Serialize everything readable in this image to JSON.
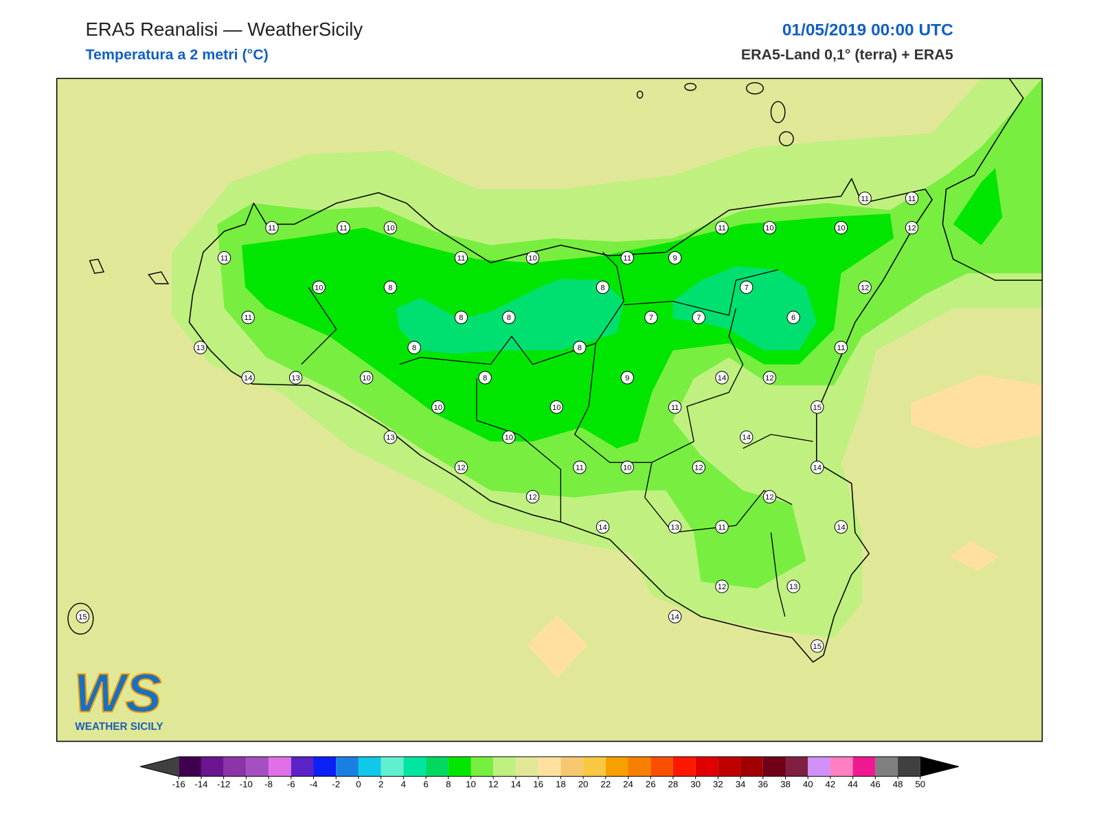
{
  "header": {
    "title": "ERA5 Reanalisi — WeatherSicily",
    "subtitle": "Temperatura a 2 metri (°C)",
    "datetime": "01/05/2019 00:00 UTC",
    "source": "ERA5-Land 0,1° (terra) + ERA5"
  },
  "map": {
    "station_values": [
      11,
      11,
      10,
      11,
      11,
      10,
      11,
      9,
      11,
      10,
      10,
      11,
      11,
      12,
      10,
      8,
      8,
      7,
      12,
      11,
      8,
      8,
      7,
      7,
      6,
      13,
      8,
      8,
      11,
      14,
      13,
      10,
      8,
      9,
      14,
      12,
      10,
      10,
      11,
      15,
      13,
      10,
      14,
      12,
      11,
      10,
      12,
      14,
      12,
      12,
      14,
      13,
      11,
      14,
      12,
      13,
      15,
      14,
      15
    ]
  },
  "logo": {
    "mark": "WS",
    "name": "WEATHER SICILY"
  },
  "colorbar": {
    "ticks": [
      -16,
      -14,
      -12,
      -10,
      -8,
      -6,
      -4,
      -2,
      0,
      2,
      4,
      6,
      8,
      10,
      12,
      14,
      16,
      18,
      20,
      22,
      24,
      26,
      28,
      30,
      32,
      34,
      36,
      38,
      40,
      42,
      44,
      46,
      48,
      50
    ],
    "colors": [
      "#40004f",
      "#6b1590",
      "#8b35a8",
      "#a550c0",
      "#e070e8",
      "#5a22c8",
      "#0a20f5",
      "#1a80e0",
      "#10c8e8",
      "#60f0d0",
      "#00e6a0",
      "#00d860",
      "#00e600",
      "#78ee40",
      "#c0f080",
      "#e0e898",
      "#ffe0a0",
      "#f8c870",
      "#f8c840",
      "#f8a000",
      "#f88000",
      "#f85000",
      "#ff1800",
      "#e00000",
      "#c00000",
      "#a00000",
      "#700018",
      "#802040",
      "#d090f8",
      "#ff80c0",
      "#f01890",
      "#808080",
      "#404040"
    ],
    "extend_colors": [
      "#404040",
      "#000000"
    ]
  }
}
